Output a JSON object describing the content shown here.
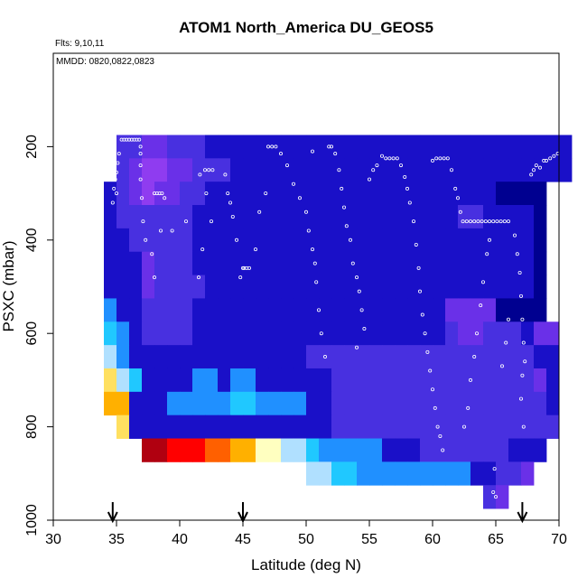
{
  "chart_data": {
    "type": "heatmap",
    "title": "ATOM1 North_America DU_GEOS5",
    "annotations": {
      "flights": "Flts: 9,10,11",
      "dates": "MMDD: 0820,0822,0823"
    },
    "xlabel": "Latitude (deg N)",
    "ylabel": "PSXC (mbar)",
    "xlim": [
      30,
      70
    ],
    "ylim": [
      1000,
      0
    ],
    "x_ticks": [
      30,
      35,
      40,
      45,
      50,
      55,
      60,
      65,
      70
    ],
    "y_ticks": [
      200,
      400,
      600,
      800,
      1000
    ],
    "arrows_at_latitude": [
      34.7,
      45.0,
      67.1
    ],
    "grid": false,
    "legend": "none",
    "colormap": [
      "#000090",
      "#1a10c8",
      "#4830e0",
      "#6a30e8",
      "#8f3cf0",
      "#2090ff",
      "#20c8ff",
      "#b0e0ff",
      "#ffffc0",
      "#ffe060",
      "#ffb000",
      "#ff6000",
      "#ff0000",
      "#b00010"
    ],
    "cell_size": {
      "lat": 1.0,
      "psxc": 50
    },
    "rows": [
      {
        "p": 200,
        "start": 35,
        "cells": [
          2,
          2,
          3,
          3,
          2,
          2,
          2,
          1,
          1,
          1,
          1,
          1,
          1,
          1,
          1,
          1,
          1,
          1,
          1,
          1,
          1,
          1,
          1,
          1,
          1,
          1,
          1,
          1,
          1,
          1,
          1,
          1,
          1,
          1,
          1,
          1
        ]
      },
      {
        "p": 250,
        "start": 35,
        "cells": [
          2,
          3,
          4,
          4,
          3,
          3,
          2,
          2,
          2,
          1,
          1,
          1,
          1,
          1,
          1,
          1,
          1,
          1,
          1,
          1,
          1,
          1,
          1,
          1,
          1,
          1,
          1,
          1,
          1,
          1,
          1,
          1,
          1,
          1,
          1,
          1
        ]
      },
      {
        "p": 300,
        "start": 34,
        "cells": [
          1,
          2,
          3,
          4,
          3,
          3,
          2,
          2,
          1,
          1,
          1,
          1,
          1,
          1,
          1,
          1,
          1,
          1,
          1,
          1,
          1,
          1,
          1,
          1,
          1,
          1,
          1,
          1,
          1,
          1,
          1,
          0,
          0,
          0,
          0
        ]
      },
      {
        "p": 350,
        "start": 34,
        "cells": [
          1,
          2,
          2,
          2,
          2,
          2,
          2,
          1,
          1,
          1,
          1,
          1,
          1,
          1,
          1,
          1,
          1,
          1,
          1,
          1,
          1,
          1,
          1,
          1,
          1,
          1,
          1,
          1,
          2,
          2,
          1,
          1,
          1,
          1,
          0
        ]
      },
      {
        "p": 400,
        "start": 34,
        "cells": [
          1,
          1,
          2,
          2,
          2,
          2,
          2,
          1,
          1,
          1,
          1,
          1,
          1,
          1,
          1,
          1,
          1,
          1,
          1,
          1,
          1,
          1,
          1,
          1,
          1,
          1,
          1,
          1,
          1,
          1,
          1,
          1,
          1,
          1,
          0
        ]
      },
      {
        "p": 450,
        "start": 34,
        "cells": [
          1,
          1,
          1,
          3,
          2,
          2,
          2,
          1,
          1,
          1,
          1,
          1,
          1,
          1,
          1,
          1,
          1,
          1,
          1,
          1,
          1,
          1,
          1,
          1,
          1,
          1,
          1,
          1,
          1,
          1,
          1,
          1,
          1,
          1,
          0
        ]
      },
      {
        "p": 500,
        "start": 34,
        "cells": [
          1,
          1,
          1,
          3,
          2,
          2,
          2,
          2,
          1,
          1,
          1,
          1,
          1,
          1,
          1,
          1,
          1,
          1,
          1,
          1,
          1,
          1,
          1,
          1,
          1,
          1,
          1,
          1,
          1,
          1,
          1,
          1,
          1,
          1,
          0
        ]
      },
      {
        "p": 550,
        "start": 34,
        "cells": [
          5,
          1,
          1,
          2,
          2,
          2,
          2,
          1,
          1,
          1,
          1,
          1,
          1,
          1,
          1,
          1,
          1,
          1,
          1,
          1,
          1,
          1,
          1,
          1,
          1,
          1,
          1,
          3,
          3,
          3,
          3,
          0,
          0,
          0,
          0
        ]
      },
      {
        "p": 600,
        "start": 34,
        "cells": [
          6,
          5,
          1,
          2,
          2,
          2,
          2,
          1,
          1,
          1,
          1,
          1,
          1,
          1,
          1,
          1,
          1,
          1,
          1,
          1,
          1,
          1,
          1,
          1,
          1,
          1,
          1,
          2,
          3,
          3,
          2,
          2,
          2,
          1,
          3,
          3
        ]
      },
      {
        "p": 650,
        "start": 34,
        "cells": [
          7,
          5,
          1,
          1,
          1,
          1,
          1,
          1,
          1,
          1,
          1,
          1,
          1,
          1,
          1,
          1,
          2,
          2,
          2,
          2,
          2,
          2,
          2,
          2,
          2,
          2,
          2,
          2,
          2,
          2,
          2,
          2,
          2,
          2,
          1,
          1
        ]
      },
      {
        "p": 700,
        "start": 34,
        "cells": [
          9,
          7,
          6,
          1,
          1,
          1,
          1,
          5,
          5,
          1,
          5,
          5,
          1,
          1,
          1,
          1,
          1,
          1,
          2,
          2,
          2,
          2,
          2,
          2,
          2,
          2,
          2,
          2,
          2,
          2,
          2,
          2,
          2,
          2,
          3,
          1
        ]
      },
      {
        "p": 750,
        "start": 34,
        "cells": [
          10,
          10,
          1,
          1,
          1,
          5,
          5,
          5,
          5,
          5,
          6,
          6,
          5,
          5,
          5,
          5,
          1,
          1,
          2,
          2,
          2,
          2,
          2,
          2,
          2,
          2,
          2,
          2,
          2,
          2,
          2,
          2,
          2,
          2,
          2,
          1
        ]
      },
      {
        "p": 800,
        "start": 35,
        "cells": [
          9,
          1,
          1,
          1,
          1,
          1,
          1,
          1,
          1,
          1,
          1,
          1,
          1,
          1,
          1,
          1,
          1,
          2,
          2,
          2,
          2,
          2,
          2,
          2,
          2,
          2,
          2,
          2,
          2,
          2,
          2,
          2,
          2,
          2,
          2
        ]
      },
      {
        "p": 850,
        "start": 37,
        "cells": [
          13,
          13,
          12,
          12,
          12,
          11,
          11,
          10,
          10,
          8,
          8,
          7,
          7,
          6,
          5,
          5,
          5,
          5,
          5,
          1,
          1,
          1,
          2,
          2,
          2,
          2,
          2,
          2,
          2,
          1,
          1,
          1
        ]
      },
      {
        "p": 900,
        "start": 50,
        "cells": [
          7,
          7,
          6,
          6,
          5,
          5,
          5,
          5,
          5,
          5,
          5,
          5,
          5,
          1,
          1,
          2,
          2,
          3
        ]
      },
      {
        "p": 950,
        "start": 64,
        "cells": [
          2,
          3
        ]
      }
    ],
    "flight_track_points": [
      [
        35.4,
        185
      ],
      [
        35.6,
        185
      ],
      [
        35.8,
        185
      ],
      [
        36.0,
        185
      ],
      [
        36.2,
        185
      ],
      [
        36.4,
        185
      ],
      [
        36.6,
        185
      ],
      [
        36.8,
        185
      ],
      [
        36.9,
        200
      ],
      [
        36.9,
        215
      ],
      [
        35.2,
        215
      ],
      [
        35.1,
        235
      ],
      [
        35.0,
        255
      ],
      [
        34.9,
        270
      ],
      [
        34.8,
        290
      ],
      [
        34.7,
        320
      ],
      [
        35.0,
        300
      ],
      [
        36.9,
        240
      ],
      [
        36.9,
        270
      ],
      [
        37.0,
        310
      ],
      [
        37.1,
        360
      ],
      [
        37.3,
        400
      ],
      [
        38.0,
        300
      ],
      [
        38.2,
        300
      ],
      [
        38.4,
        300
      ],
      [
        38.6,
        300
      ],
      [
        38.8,
        310
      ],
      [
        37.8,
        430
      ],
      [
        38.0,
        480
      ],
      [
        38.5,
        380
      ],
      [
        39.4,
        380
      ],
      [
        40.5,
        360
      ],
      [
        41.6,
        260
      ],
      [
        42.0,
        250
      ],
      [
        42.3,
        250
      ],
      [
        42.6,
        250
      ],
      [
        42.1,
        300
      ],
      [
        41.8,
        420
      ],
      [
        41.5,
        480
      ],
      [
        42.5,
        360
      ],
      [
        43.6,
        260
      ],
      [
        43.8,
        300
      ],
      [
        44.0,
        320
      ],
      [
        44.2,
        350
      ],
      [
        44.5,
        400
      ],
      [
        45.0,
        460
      ],
      [
        45.1,
        460
      ],
      [
        45.3,
        460
      ],
      [
        45.5,
        460
      ],
      [
        44.8,
        480
      ],
      [
        46.0,
        420
      ],
      [
        46.3,
        340
      ],
      [
        46.8,
        300
      ],
      [
        47.0,
        200
      ],
      [
        47.3,
        200
      ],
      [
        47.6,
        200
      ],
      [
        48.0,
        215
      ],
      [
        48.5,
        240
      ],
      [
        49.0,
        280
      ],
      [
        49.5,
        310
      ],
      [
        50.0,
        340
      ],
      [
        50.2,
        380
      ],
      [
        50.5,
        420
      ],
      [
        50.7,
        450
      ],
      [
        50.8,
        490
      ],
      [
        51.0,
        550
      ],
      [
        51.2,
        600
      ],
      [
        51.5,
        650
      ],
      [
        50.5,
        210
      ],
      [
        51.8,
        200
      ],
      [
        52.0,
        200
      ],
      [
        52.3,
        215
      ],
      [
        52.6,
        250
      ],
      [
        52.8,
        290
      ],
      [
        53.0,
        330
      ],
      [
        53.2,
        370
      ],
      [
        53.5,
        400
      ],
      [
        53.7,
        450
      ],
      [
        54.0,
        480
      ],
      [
        54.2,
        510
      ],
      [
        54.4,
        550
      ],
      [
        54.6,
        590
      ],
      [
        54.0,
        630
      ],
      [
        55.0,
        270
      ],
      [
        55.3,
        250
      ],
      [
        55.6,
        240
      ],
      [
        56.0,
        220
      ],
      [
        56.3,
        225
      ],
      [
        56.6,
        225
      ],
      [
        56.9,
        225
      ],
      [
        57.2,
        225
      ],
      [
        57.5,
        240
      ],
      [
        57.8,
        265
      ],
      [
        58.0,
        290
      ],
      [
        58.2,
        320
      ],
      [
        58.5,
        360
      ],
      [
        58.7,
        410
      ],
      [
        58.9,
        460
      ],
      [
        59.0,
        510
      ],
      [
        59.2,
        560
      ],
      [
        59.4,
        600
      ],
      [
        59.6,
        640
      ],
      [
        59.8,
        680
      ],
      [
        60.0,
        720
      ],
      [
        60.2,
        760
      ],
      [
        60.4,
        800
      ],
      [
        60.6,
        820
      ],
      [
        60.8,
        850
      ],
      [
        60.0,
        230
      ],
      [
        60.3,
        225
      ],
      [
        60.6,
        225
      ],
      [
        60.9,
        225
      ],
      [
        61.2,
        225
      ],
      [
        61.5,
        250
      ],
      [
        61.8,
        290
      ],
      [
        62.0,
        310
      ],
      [
        62.2,
        340
      ],
      [
        62.4,
        360
      ],
      [
        62.7,
        360
      ],
      [
        63.0,
        360
      ],
      [
        63.3,
        360
      ],
      [
        63.6,
        360
      ],
      [
        63.9,
        360
      ],
      [
        64.2,
        360
      ],
      [
        64.5,
        360
      ],
      [
        64.8,
        360
      ],
      [
        65.1,
        360
      ],
      [
        65.4,
        360
      ],
      [
        65.7,
        360
      ],
      [
        66.0,
        360
      ],
      [
        64.5,
        400
      ],
      [
        64.3,
        430
      ],
      [
        64.0,
        490
      ],
      [
        63.8,
        540
      ],
      [
        63.5,
        600
      ],
      [
        63.3,
        650
      ],
      [
        63.0,
        700
      ],
      [
        62.8,
        760
      ],
      [
        62.5,
        800
      ],
      [
        64.9,
        890
      ],
      [
        64.8,
        940
      ],
      [
        65.0,
        950
      ],
      [
        66.5,
        390
      ],
      [
        66.7,
        430
      ],
      [
        66.9,
        470
      ],
      [
        67.0,
        520
      ],
      [
        67.1,
        570
      ],
      [
        67.2,
        620
      ],
      [
        67.3,
        660
      ],
      [
        67.1,
        690
      ],
      [
        67.0,
        740
      ],
      [
        67.2,
        800
      ],
      [
        66.0,
        570
      ],
      [
        65.8,
        620
      ],
      [
        65.5,
        670
      ],
      [
        68.2,
        240
      ],
      [
        68.5,
        245
      ],
      [
        68.8,
        230
      ],
      [
        69.0,
        230
      ],
      [
        69.3,
        225
      ],
      [
        69.6,
        220
      ],
      [
        69.9,
        215
      ],
      [
        67.8,
        260
      ],
      [
        68.0,
        250
      ]
    ]
  }
}
